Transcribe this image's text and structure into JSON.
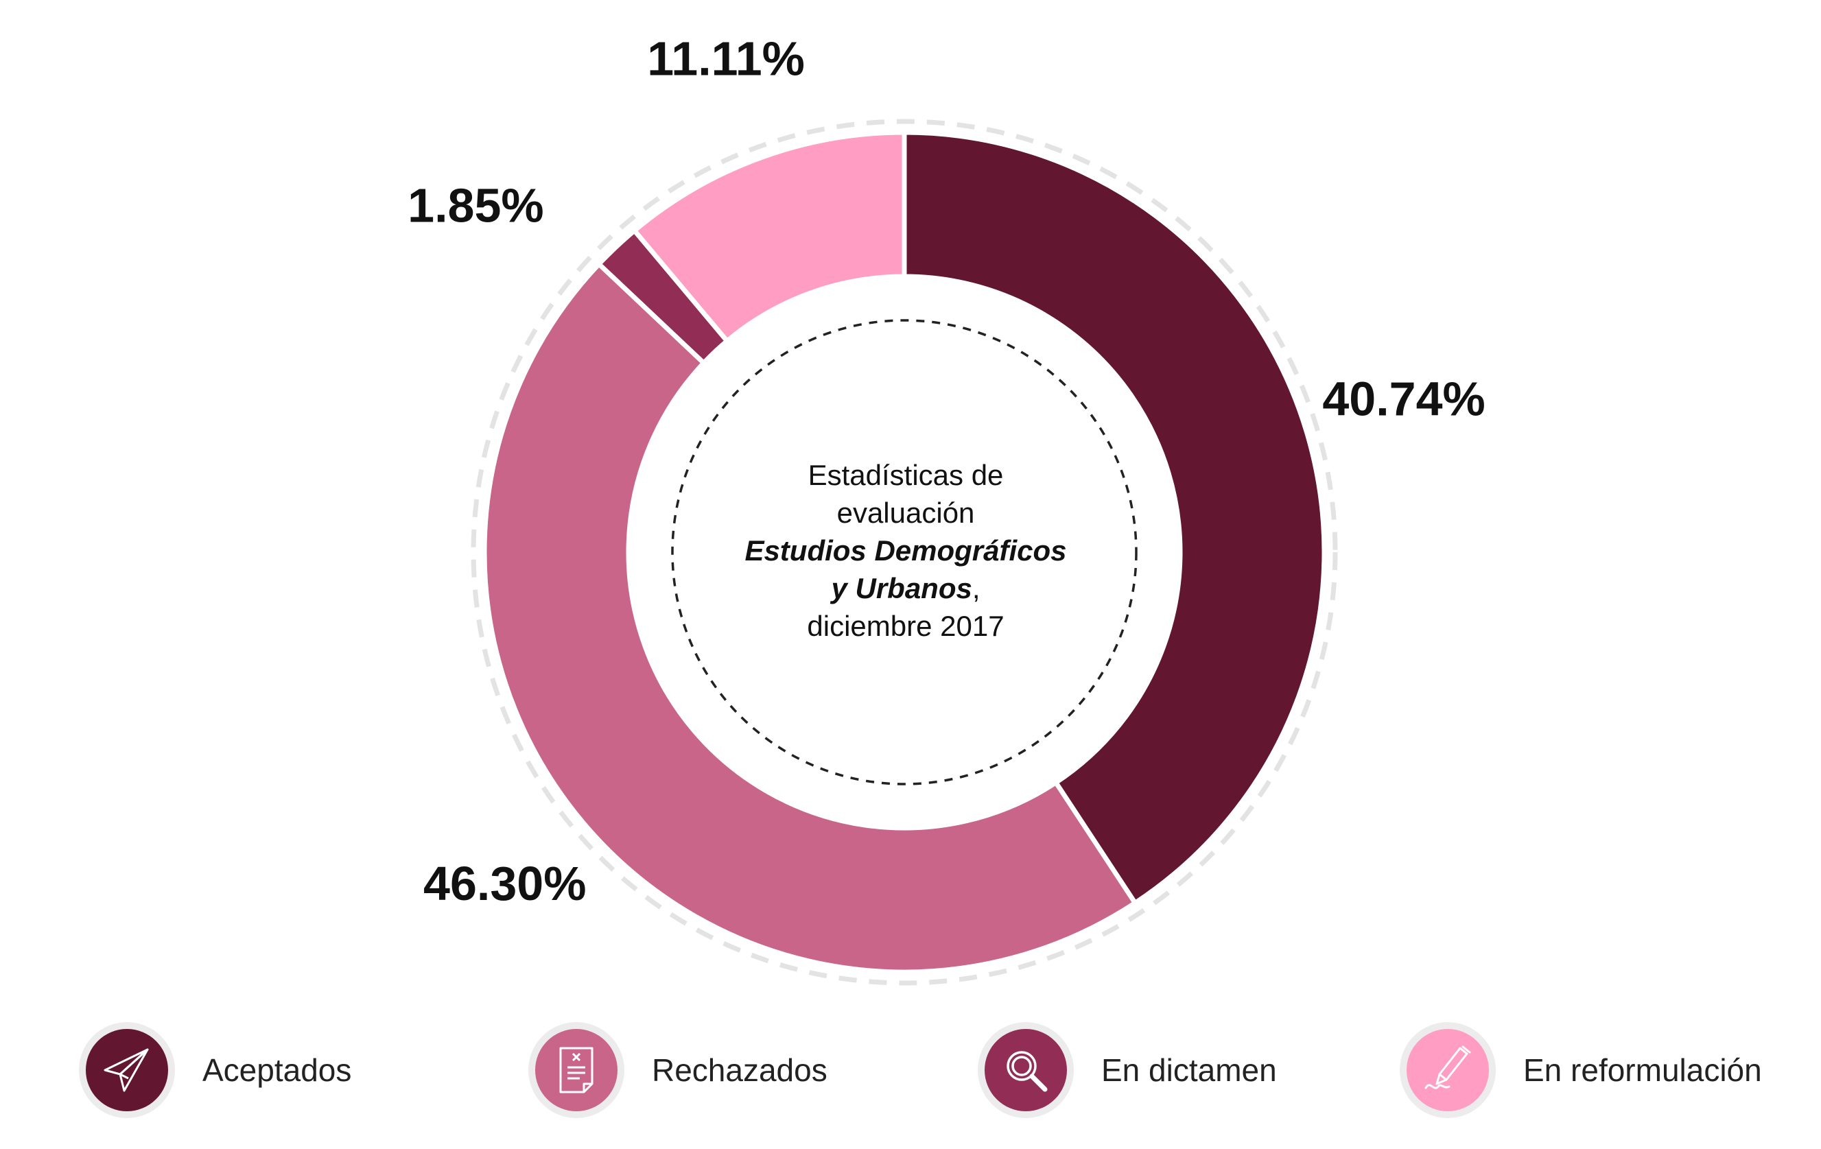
{
  "chart_data": {
    "type": "pie",
    "subtype": "donut",
    "title_lines": [
      {
        "text": "Estadísticas de",
        "style": "plain"
      },
      {
        "text": "evaluación",
        "style": "plain"
      },
      {
        "text": "Estudios Demográficos",
        "style": "em"
      },
      {
        "text": "y Urbanos",
        "style": "em",
        "suffix": ","
      },
      {
        "text": "diciembre 2017",
        "style": "plain"
      }
    ],
    "slices": [
      {
        "label": "Aceptados",
        "value": 40.74,
        "display": "40.74%",
        "color": "#62162f"
      },
      {
        "label": "Rechazados",
        "value": 46.3,
        "display": "46.30%",
        "color": "#c96589"
      },
      {
        "label": "En dictamen",
        "value": 1.85,
        "display": "1.85%",
        "color": "#922d56"
      },
      {
        "label": "En reformulación",
        "value": 11.11,
        "display": "11.11%",
        "color": "#ff9dc2"
      }
    ],
    "start_angle_deg": 0,
    "direction": "clockwise",
    "legend_placement": "bottom"
  },
  "legend": {
    "items": [
      {
        "label": "Aceptados",
        "icon": "paper-plane-icon",
        "color": "#62162f"
      },
      {
        "label": "Rechazados",
        "icon": "rejected-document-icon",
        "color": "#c96589"
      },
      {
        "label": "En dictamen",
        "icon": "magnifier-icon",
        "color": "#922d56"
      },
      {
        "label": "En reformulación",
        "icon": "pen-signature-icon",
        "color": "#ff9dc2"
      }
    ]
  }
}
